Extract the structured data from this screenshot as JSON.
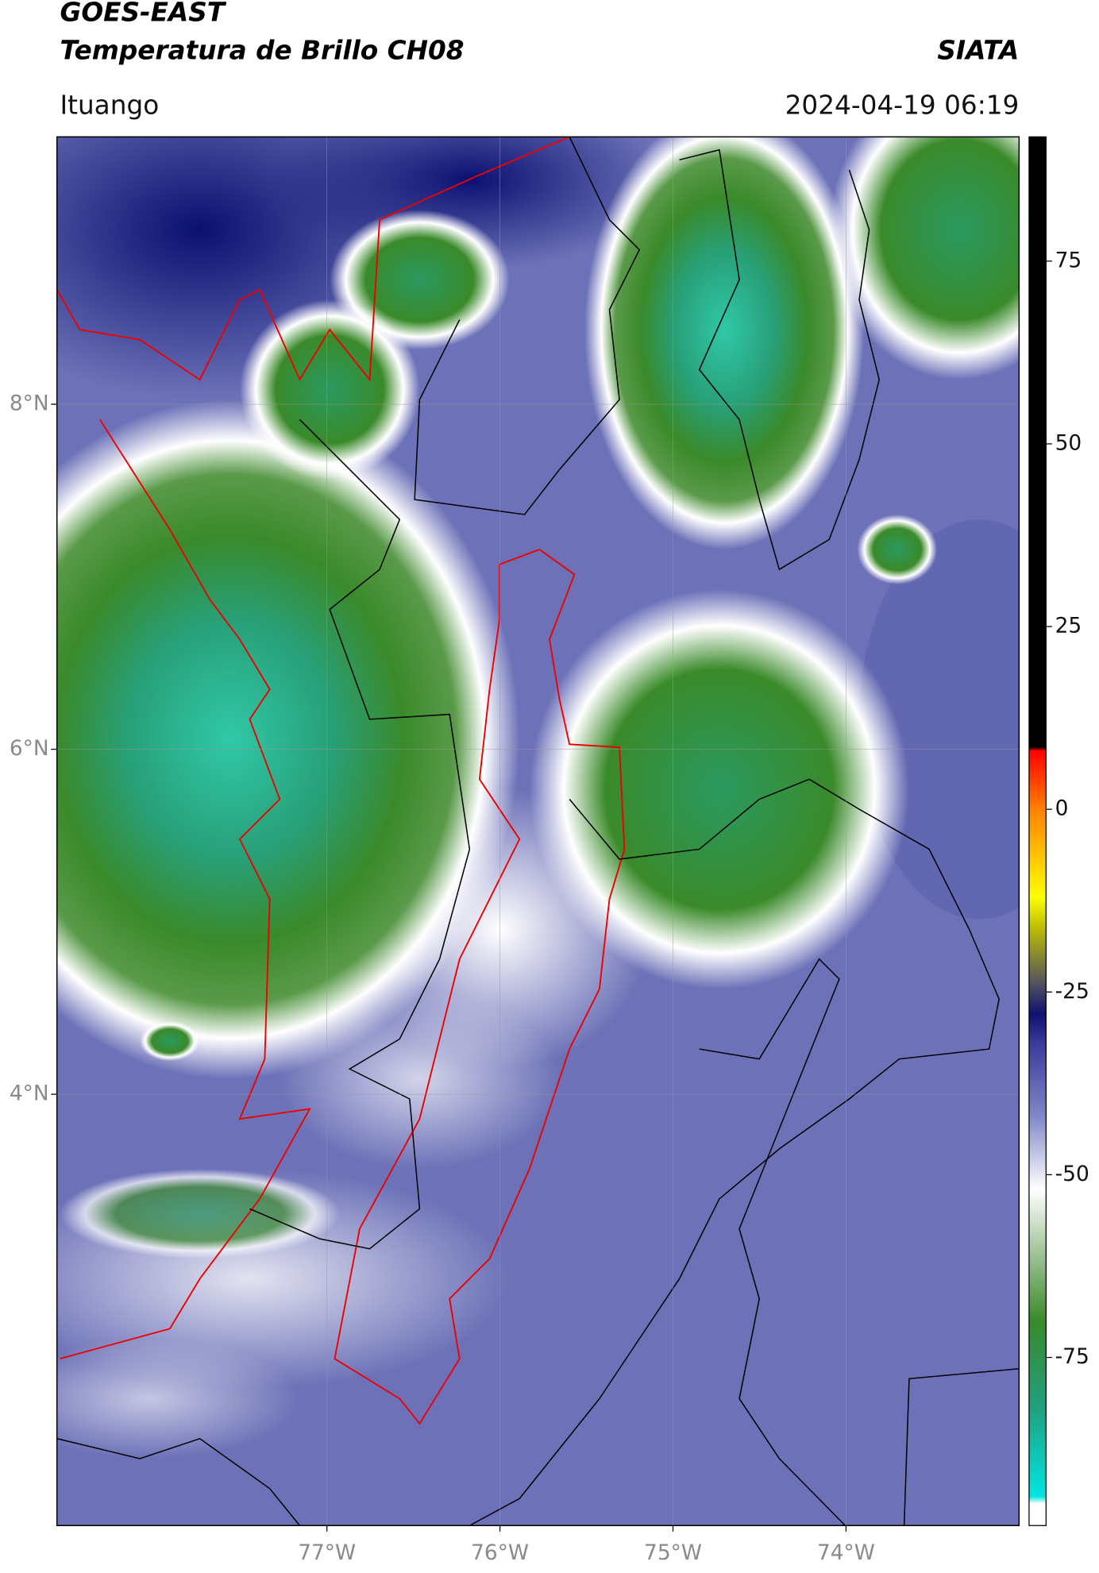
{
  "chart_data": {
    "type": "map",
    "title": "GOES-EAST",
    "subtitle": "Temperatura de Brillo CH08",
    "source": "SIATA",
    "region": "Ituango",
    "datetime": "2024-04-19 06:19",
    "xlim": [
      -78.56,
      -73.0
    ],
    "ylim": [
      1.5,
      9.55
    ],
    "xticks": [
      {
        "value": -77,
        "label": "77°W"
      },
      {
        "value": -76,
        "label": "76°W"
      },
      {
        "value": -75,
        "label": "75°W"
      },
      {
        "value": -74,
        "label": "74°W"
      }
    ],
    "yticks": [
      {
        "value": 4,
        "label": "4°N"
      },
      {
        "value": 6,
        "label": "6°N"
      },
      {
        "value": 8,
        "label": "8°N"
      }
    ],
    "grid": true,
    "colorbar": {
      "clim": [
        -98,
        92
      ],
      "ticks": [
        75,
        50,
        25,
        0,
        -25,
        -50,
        -75
      ],
      "colors": [
        [
          -98,
          "#ffffff"
        ],
        [
          -95,
          "#ffffff"
        ],
        [
          -94,
          "#00e5e0"
        ],
        [
          -82,
          "#20a080"
        ],
        [
          -70,
          "#3a8a2a"
        ],
        [
          -60,
          "#a8c8a0"
        ],
        [
          -52,
          "#ffffff"
        ],
        [
          -42,
          "#8088c8"
        ],
        [
          -32,
          "#3a3a9a"
        ],
        [
          -28,
          "#101070"
        ],
        [
          -24,
          "#505060"
        ],
        [
          -16,
          "#c0c000"
        ],
        [
          -12,
          "#ffff00"
        ],
        [
          0,
          "#ff8000"
        ],
        [
          8,
          "#ff0000"
        ],
        [
          8.5,
          "#000000"
        ],
        [
          92,
          "#000000"
        ]
      ]
    }
  }
}
